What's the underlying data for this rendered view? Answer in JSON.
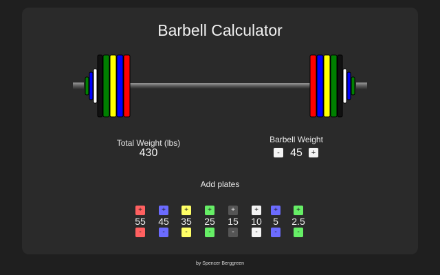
{
  "app": {
    "title": "Barbell Calculator",
    "footer": "by Spencer Berggreen"
  },
  "total": {
    "label": "Total Weight (lbs)",
    "value": "430"
  },
  "barbell": {
    "label": "Barbell Weight",
    "value": "45",
    "decrement_label": "-",
    "increment_label": "+"
  },
  "add_plates": {
    "label": "Add plates",
    "plates": [
      {
        "weight": "55",
        "color": "#ff6060",
        "plus": "+",
        "minus": "-"
      },
      {
        "weight": "45",
        "color": "#6b6bff",
        "plus": "+",
        "minus": "-"
      },
      {
        "weight": "35",
        "color": "#ffff66",
        "plus": "+",
        "minus": "-"
      },
      {
        "weight": "25",
        "color": "#66ee66",
        "plus": "+",
        "minus": "-"
      },
      {
        "weight": "15",
        "color": "#555555",
        "plus": "+",
        "minus": "-"
      },
      {
        "weight": "10",
        "color": "#f4f4f4",
        "plus": "+",
        "minus": "-"
      },
      {
        "weight": "5",
        "color": "#6b6bff",
        "plus": "+",
        "minus": "-"
      },
      {
        "weight": "2.5",
        "color": "#66ee66",
        "plus": "+",
        "minus": "-"
      }
    ]
  },
  "loaded_plates": [
    {
      "weight": "55",
      "color": "#ff0000"
    },
    {
      "weight": "45",
      "color": "#0000ff"
    },
    {
      "weight": "35",
      "color": "#ffff00"
    },
    {
      "weight": "25",
      "color": "#008000"
    },
    {
      "weight": "15",
      "color": "#111111"
    },
    {
      "weight": "10",
      "color": "#ffffff"
    },
    {
      "weight": "5",
      "color": "#0000ff"
    },
    {
      "weight": "2.5",
      "color": "#008000"
    }
  ]
}
